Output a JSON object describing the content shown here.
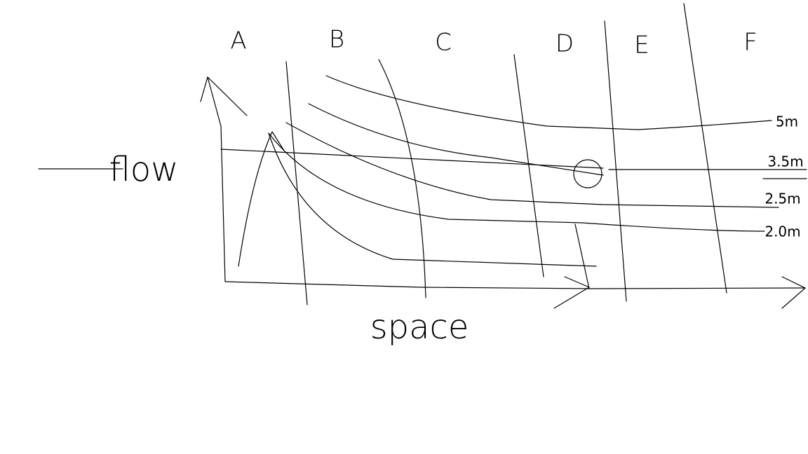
{
  "columns": [
    "A",
    "B",
    "C",
    "D",
    "E",
    "F"
  ],
  "axis_labels": {
    "y": "flow",
    "x": "space"
  },
  "curve_labels": [
    "5m",
    "3.5m",
    "2.5m",
    "2.0m"
  ]
}
